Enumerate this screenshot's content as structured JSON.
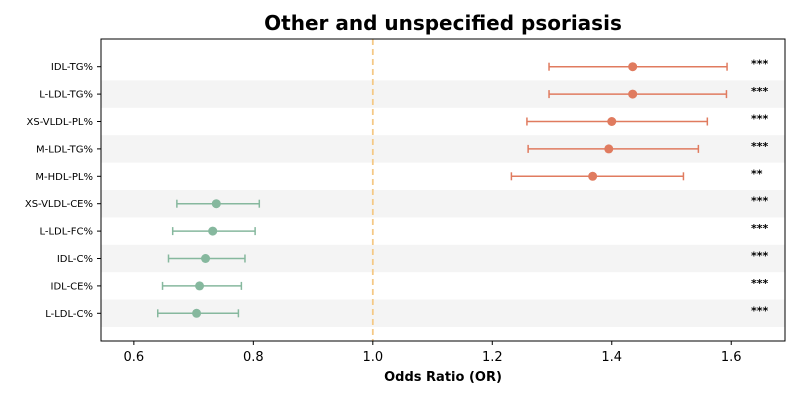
{
  "chart_data": {
    "type": "forest",
    "title": "Other and unspecified psoriasis",
    "xlabel": "Odds Ratio (OR)",
    "xlim": [
      0.545,
      1.69
    ],
    "xticks": [
      0.6,
      0.8,
      1.0,
      1.2,
      1.4,
      1.6
    ],
    "xtick_labels": [
      "0.6",
      "0.8",
      "1.0",
      "1.2",
      "1.4",
      "1.6"
    ],
    "reference_line": 1.0,
    "colors": {
      "risk": "#e07b5f",
      "protective": "#86b89e",
      "reference": "#f5c986",
      "band": "#f4f4f4"
    },
    "categories": [
      "IDL-TG%",
      "L-LDL-TG%",
      "XS-VLDL-PL%",
      "M-LDL-TG%",
      "M-HDL-PL%",
      "XS-VLDL-CE%",
      "L-LDL-FC%",
      "IDL-C%",
      "IDL-CE%",
      "L-LDL-C%"
    ],
    "or": [
      1.435,
      1.435,
      1.4,
      1.395,
      1.368,
      0.738,
      0.732,
      0.72,
      0.71,
      0.705
    ],
    "ci_low": [
      1.295,
      1.295,
      1.258,
      1.26,
      1.232,
      0.672,
      0.665,
      0.658,
      0.648,
      0.64
    ],
    "ci_high": [
      1.593,
      1.592,
      1.56,
      1.545,
      1.52,
      0.81,
      0.803,
      0.786,
      0.78,
      0.775
    ],
    "significance": [
      "***",
      "***",
      "***",
      "***",
      "**",
      "***",
      "***",
      "***",
      "***",
      "***"
    ]
  }
}
